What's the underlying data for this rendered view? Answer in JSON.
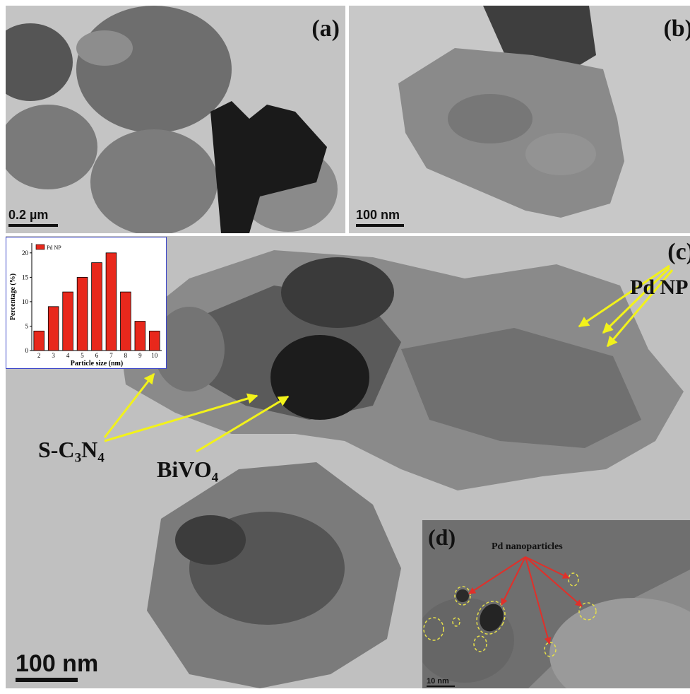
{
  "panels": {
    "a": {
      "label": "(a)",
      "scale": "0.2 µm"
    },
    "b": {
      "label": "(b)",
      "scale": "100 nm"
    },
    "c": {
      "label": "(c)",
      "scale": "100 nm"
    },
    "d": {
      "label": "(d)",
      "scale": "10 nm",
      "annotation": "Pd nanoparticles"
    }
  },
  "annotations": {
    "pd_np": "Pd NP",
    "sc3n4": {
      "base": "S-C",
      "sub1": "3",
      "mid": "N",
      "sub2": "4"
    },
    "bivo4": {
      "base": "BiVO",
      "sub": "4"
    }
  },
  "colors": {
    "arrow_yellow": "#f2f21a",
    "arrow_red": "#e0302a",
    "bar_red": "#e8281c",
    "dashed_yellow": "#e6e04a"
  },
  "chart_data": {
    "type": "bar",
    "categories": [
      "2",
      "3",
      "4",
      "5",
      "6",
      "7",
      "8",
      "9",
      "10"
    ],
    "series": [
      {
        "name": "Pd NP",
        "values": [
          4,
          9,
          12,
          15,
          18,
          20,
          12,
          6,
          4
        ]
      }
    ],
    "xlabel": "Particle size (nm)",
    "ylabel": "Percentage (%)",
    "ylim": [
      0,
      22
    ],
    "yticks": [
      "0",
      "5",
      "10",
      "15",
      "20"
    ],
    "legend": "top-left"
  }
}
